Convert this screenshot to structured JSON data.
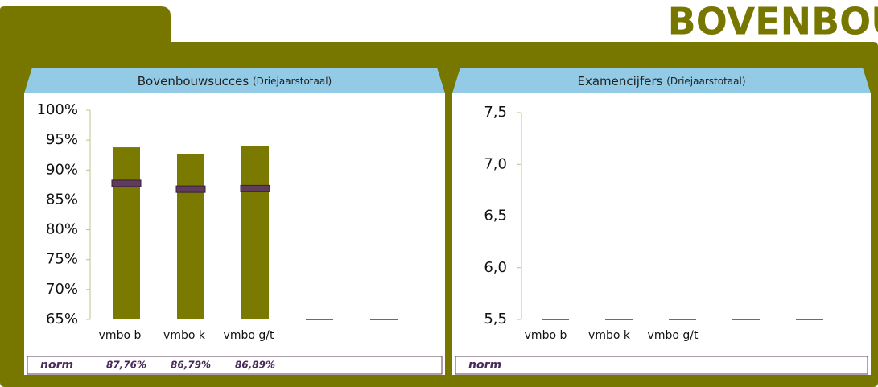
{
  "header": {
    "title": "BOVENBOUW"
  },
  "chart_data": [
    {
      "type": "bar",
      "title": "Bovenbouwsucces",
      "subtitle": "(Driejaarstotaal)",
      "categories": [
        "vmbo b",
        "vmbo k",
        "vmbo g/t",
        null,
        null
      ],
      "series": [
        {
          "name": "Bovenbouwsucces",
          "color": "#7a7a00",
          "values": [
            93.8,
            92.7,
            94.0,
            null,
            null
          ]
        },
        {
          "name": "norm",
          "color": "#5e3c5e",
          "values": [
            87.76,
            86.79,
            86.89,
            null,
            null
          ],
          "value_labels": [
            "87,76%",
            "86,79%",
            "86,89%",
            null,
            null
          ]
        }
      ],
      "ylim": [
        65,
        100
      ],
      "yticks": [
        {
          "value": 65,
          "label": "65%"
        },
        {
          "value": 70,
          "label": "70%"
        },
        {
          "value": 75,
          "label": "75%"
        },
        {
          "value": 80,
          "label": "80%"
        },
        {
          "value": 85,
          "label": "85%"
        },
        {
          "value": 90,
          "label": "90%"
        },
        {
          "value": 95,
          "label": "95%"
        },
        {
          "value": 100,
          "label": "100%"
        }
      ]
    },
    {
      "type": "bar",
      "title": "Examencijfers",
      "subtitle": "(Driejaarstotaal)",
      "categories": [
        "vmbo b",
        "vmbo k",
        "vmbo g/t",
        null,
        null
      ],
      "series": [
        {
          "name": "Examencijfers",
          "color": "#7a7a00",
          "values": [
            null,
            null,
            null,
            null,
            null
          ]
        },
        {
          "name": "norm",
          "color": "#5e3c5e",
          "values": [
            null,
            null,
            null,
            null,
            null
          ]
        }
      ],
      "ylim": [
        5.5,
        7.5
      ],
      "yticks": [
        {
          "value": 5.5,
          "label": "5,5"
        },
        {
          "value": 6.0,
          "label": "6,0"
        },
        {
          "value": 6.5,
          "label": "6,5"
        },
        {
          "value": 7.0,
          "label": "7,0"
        },
        {
          "value": 7.5,
          "label": "7,5"
        }
      ]
    }
  ]
}
